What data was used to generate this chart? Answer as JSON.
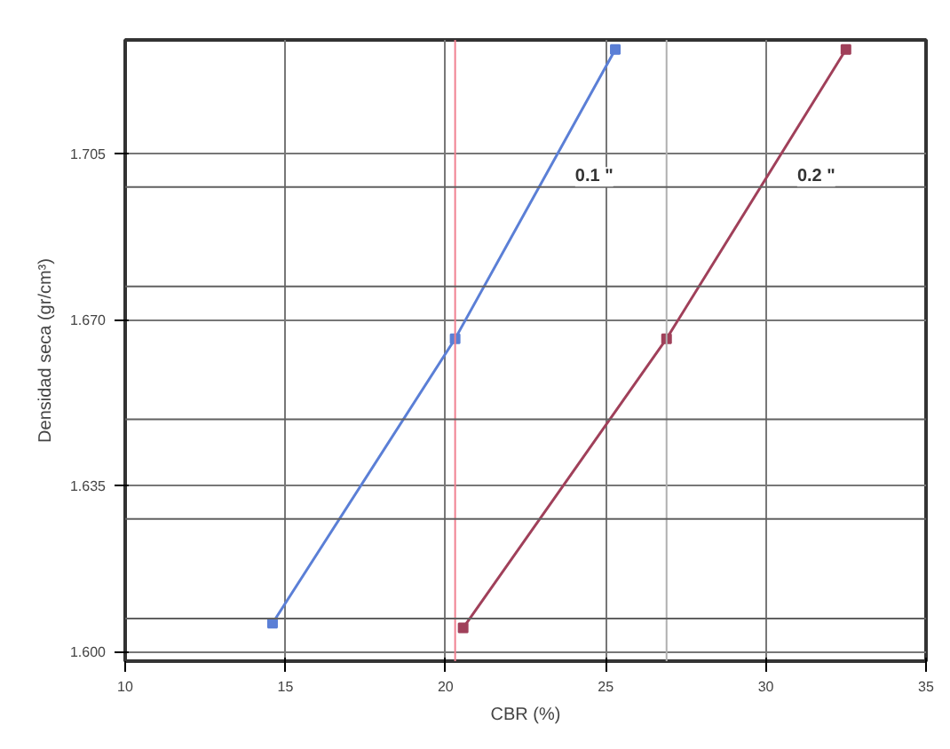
{
  "chart_data": {
    "type": "line",
    "xlabel": "CBR (%)",
    "ylabel": "Densidad seca (gr/cm³)",
    "series": [
      {
        "name": "0.1 \"",
        "color": "#5b7fd6",
        "x": [
          14.6,
          20.3,
          25.3
        ],
        "values": [
          1.606,
          1.666,
          1.727
        ]
      },
      {
        "name": "0.2 \"",
        "color": "#a0405a",
        "x": [
          20.55,
          26.9,
          32.5
        ],
        "values": [
          1.605,
          1.666,
          1.727
        ]
      }
    ],
    "xlim": [
      10,
      35
    ],
    "xticks": [
      10,
      15,
      20,
      25,
      30,
      35
    ],
    "ylim": [
      1.598,
      1.729
    ],
    "yticks": [
      {
        "value": 1.6,
        "label": "1.600"
      },
      {
        "value": 1.635,
        "label": "1.635"
      },
      {
        "value": 1.67,
        "label": "1.670"
      },
      {
        "value": 1.705,
        "label": "1.705"
      }
    ],
    "grid": true,
    "marker": "square",
    "line_style": "solid",
    "ref_lines": [
      {
        "axis": "x",
        "value": 20.3,
        "label": null,
        "color": "#f08090"
      },
      {
        "axis": "x",
        "value": 26.9,
        "label": null,
        "color": "#b0b0b0"
      },
      {
        "axis": "y",
        "value": 1.698,
        "label": null,
        "color": "#606060"
      },
      {
        "axis": "y",
        "value": 1.677,
        "label": null,
        "color": "#606060"
      },
      {
        "axis": "y",
        "value": 1.649,
        "label": null,
        "color": "#606060"
      },
      {
        "axis": "y",
        "value": 1.628,
        "label": null,
        "color": "#606060"
      },
      {
        "axis": "y",
        "value": 1.607,
        "label": null,
        "color": "#606060"
      }
    ]
  }
}
